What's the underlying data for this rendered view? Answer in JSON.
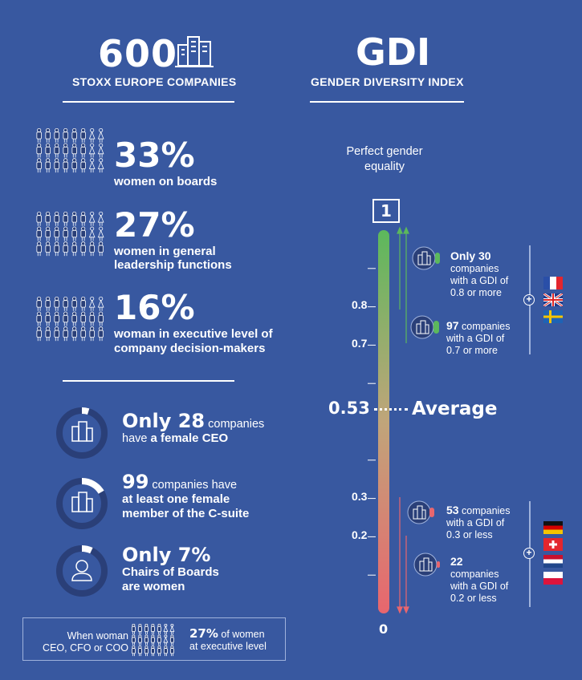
{
  "left": {
    "count": "600",
    "count_caption": "STOXX EUROPE COMPANIES",
    "stats": [
      {
        "percent": "33%",
        "text": "women on boards"
      },
      {
        "percent": "27%",
        "text_line1": "women in general",
        "text_line2": "leadership functions"
      },
      {
        "percent": "16%",
        "text_line1": "woman in executive level of",
        "text_line2": "company decision-makers"
      }
    ],
    "circles": [
      {
        "lead": "Only ",
        "num": "28",
        "rest": " companies",
        "line2_pre": "have ",
        "line2_bold": "a female CEO",
        "fill_fraction": 0.047
      },
      {
        "num": "99",
        "rest": " companies have",
        "line2": "at least one female",
        "line3": "member of the C-suite",
        "fill_fraction": 0.165
      },
      {
        "lead": "Only ",
        "num": "7%",
        "line2": "Chairs of Boards",
        "line3": "are women",
        "fill_fraction": 0.07
      }
    ],
    "footer": {
      "label_line1": "When woman",
      "label_line2": "CEO, CFO or COO",
      "percent": "27%",
      "text_line1": " of women",
      "text_line2": "at executive level"
    }
  },
  "right": {
    "title": "GDI",
    "title_caption": "GENDER DIVERSITY INDEX",
    "perfect_line1": "Perfect gender",
    "perfect_line2": "equality",
    "top_value": "1",
    "zero": "0",
    "average_value": "0.53",
    "average_label": "Average",
    "ticks": [
      "0.8",
      "0.7",
      "0.3",
      "0.2"
    ],
    "groups": [
      {
        "bold": "Only 30",
        "line2": "companies",
        "line3": "with a GDI of",
        "line4": "0.8 or more"
      },
      {
        "bold": "97",
        "rest": " companies",
        "line2": "with a GDI of",
        "line3": "0.7 or more"
      },
      {
        "bold": "53",
        "rest": " companies",
        "line2": "with a GDI of",
        "line3": "0.3 or less"
      },
      {
        "bold": "22",
        "line2": "companies",
        "line3": "with a GDI of",
        "line4": "0.2 or less"
      }
    ],
    "high_flags": [
      "france-flag",
      "uk-flag",
      "sweden-flag"
    ],
    "low_flags": [
      "germany-flag",
      "switzerland-flag",
      "netherlands-flag",
      "poland-flag"
    ]
  },
  "colors": {
    "background": "#3858a0",
    "dark_ring": "#2a3f78",
    "bar_top": "#5cb85c",
    "bar_bottom": "#e8666e"
  }
}
